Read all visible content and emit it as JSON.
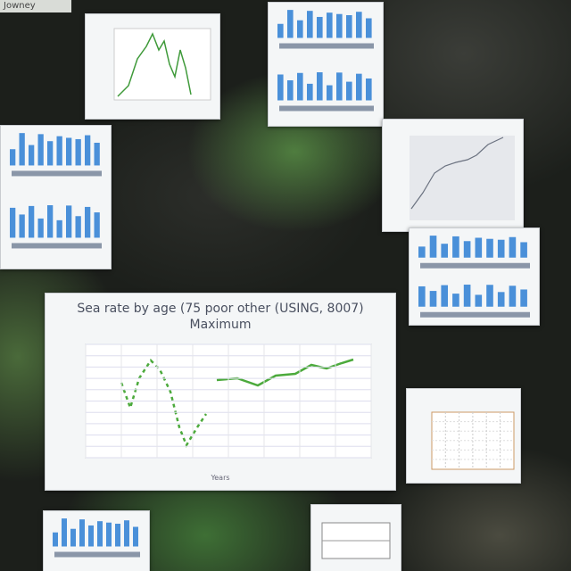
{
  "header": {
    "label": "Jowney"
  },
  "main_chart": {
    "title": "Sea rate by age (75 poor other (USING, 8007) Maximum",
    "x_label": "Years"
  }
}
